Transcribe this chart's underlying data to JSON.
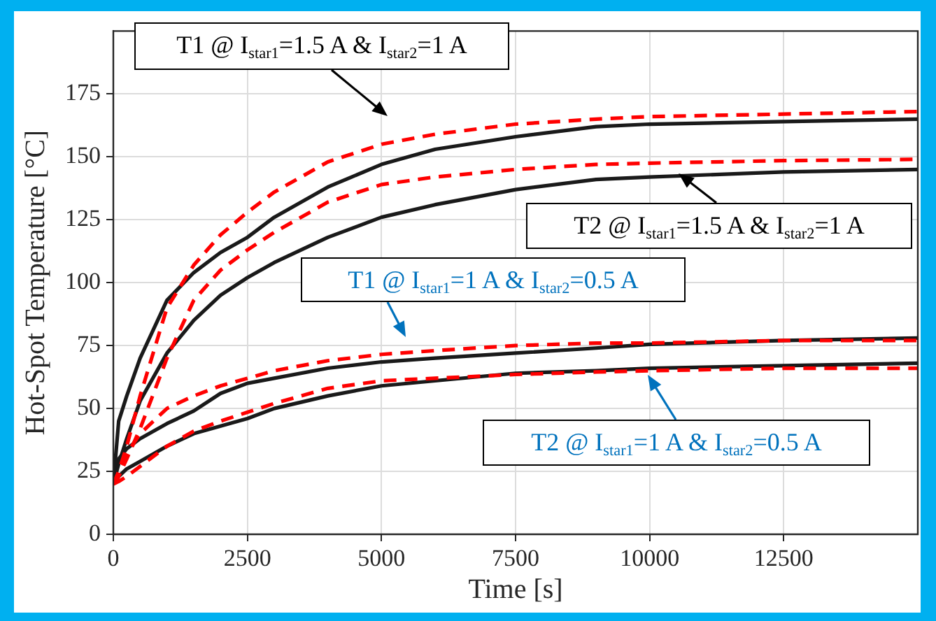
{
  "chart_data": {
    "type": "line",
    "xlabel": "Time [s]",
    "ylabel": "Hot-Spot Temperature [°C]",
    "xlim": [
      0,
      15000
    ],
    "xticks": [
      0,
      2500,
      5000,
      7500,
      10000,
      12500
    ],
    "ylim": [
      0,
      200
    ],
    "yticks": [
      0,
      25,
      50,
      75,
      100,
      125,
      150,
      175
    ],
    "grid": true,
    "legend": false,
    "marker": "none",
    "x": [
      0,
      100,
      250,
      500,
      1000,
      1500,
      2000,
      2500,
      3000,
      4000,
      5000,
      6000,
      7500,
      9000,
      10000,
      12500,
      15000
    ],
    "series": [
      {
        "color": "#1a1a1a",
        "line_style": "solid",
        "values": [
          20,
          45,
          55,
          70,
          93,
          104,
          112,
          118,
          126,
          138,
          147,
          153,
          158,
          162,
          163,
          164,
          165
        ]
      },
      {
        "color": "#ff0000",
        "line_style": "dashed",
        "values": [
          20,
          25,
          35,
          55,
          90,
          107,
          119,
          128,
          136,
          148,
          155,
          159,
          163,
          165,
          166,
          167,
          168
        ]
      },
      {
        "color": "#1a1a1a",
        "line_style": "solid",
        "values": [
          20,
          28,
          38,
          53,
          72,
          85,
          95,
          102,
          108,
          118,
          126,
          131,
          137,
          141,
          142,
          144,
          145
        ]
      },
      {
        "color": "#ff0000",
        "line_style": "dashed",
        "values": [
          20,
          23,
          30,
          42,
          70,
          93,
          105,
          113,
          120,
          132,
          139,
          142,
          145,
          147,
          147.5,
          148.5,
          149
        ]
      },
      {
        "color": "#1a1a1a",
        "line_style": "solid",
        "values": [
          20,
          30,
          34,
          38,
          44,
          49,
          56,
          60,
          62,
          66,
          68.5,
          70,
          72,
          74,
          75.5,
          77,
          78
        ]
      },
      {
        "color": "#ff0000",
        "line_style": "dashed",
        "values": [
          20,
          23,
          32,
          40,
          50,
          55,
          59,
          62,
          65,
          69,
          71.5,
          73,
          75,
          76,
          76,
          77,
          77
        ]
      },
      {
        "color": "#1a1a1a",
        "line_style": "solid",
        "values": [
          20,
          23,
          26,
          29,
          35,
          40,
          43,
          46,
          50,
          55,
          59,
          61,
          64,
          65,
          66,
          67,
          68
        ]
      },
      {
        "color": "#ff0000",
        "line_style": "dashed",
        "values": [
          20,
          21,
          23,
          27,
          35,
          41,
          45,
          48.5,
          52,
          58,
          61,
          62,
          63.5,
          64.5,
          65,
          66,
          66
        ]
      }
    ],
    "annotations": [
      "T1 @ I$_{star1}$=1.5 A & I$_{star2}$=1 A",
      "T2 @ I$_{star1}$=1.5 A & I$_{star2}$=1 A",
      "T1 @ I$_{star1}$=1 A & I$_{star2}$=0.5 A",
      "T2 @ I$_{star1}$=1 A & I$_{star2}$=0.5 A"
    ]
  }
}
